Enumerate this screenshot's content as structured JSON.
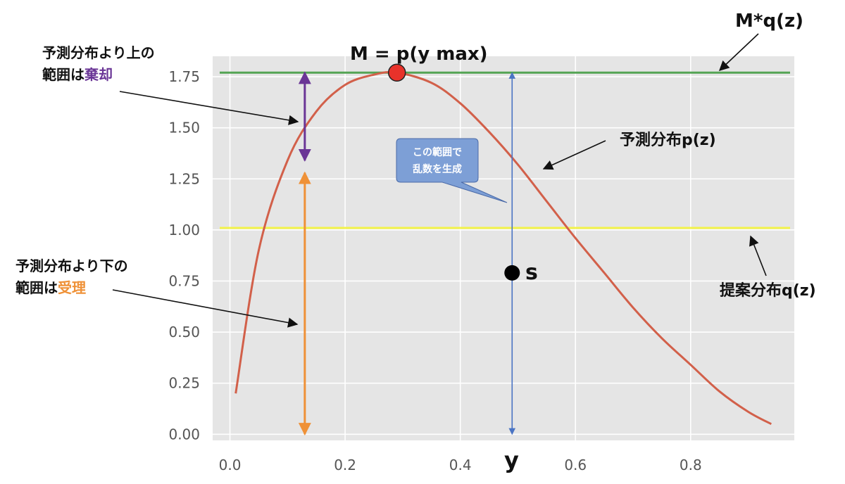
{
  "chart_data": {
    "type": "line",
    "x_ticks": [
      "0.0",
      "0.2",
      "0.4",
      "0.6",
      "0.8"
    ],
    "y_ticks": [
      "0.00",
      "0.25",
      "0.50",
      "0.75",
      "1.00",
      "1.25",
      "1.50",
      "1.75"
    ],
    "xlim": [
      -0.03,
      0.98
    ],
    "ylim": [
      -0.03,
      1.85
    ],
    "grid": true,
    "target_curve": {
      "label": "予測分布p(z)",
      "color": "#d2604a",
      "x": [
        0.01,
        0.05,
        0.1,
        0.15,
        0.2,
        0.25,
        0.29,
        0.35,
        0.4,
        0.45,
        0.5,
        0.55,
        0.6,
        0.65,
        0.7,
        0.75,
        0.8,
        0.85,
        0.9,
        0.94
      ],
      "y": [
        0.2,
        0.9,
        1.34,
        1.58,
        1.71,
        1.76,
        1.77,
        1.72,
        1.62,
        1.48,
        1.32,
        1.14,
        0.96,
        0.79,
        0.62,
        0.47,
        0.34,
        0.21,
        0.11,
        0.05
      ]
    },
    "envelope": {
      "label": "M*q(z)",
      "y": 1.77,
      "color": "#55a455"
    },
    "proposal": {
      "label": "提案分布q(z)",
      "y": 1.01,
      "color": "#f3f349"
    },
    "max_point": {
      "label": "M = p(y max)",
      "x": 0.29,
      "y": 1.77,
      "color": "#e8322a"
    },
    "sample_range": {
      "x": 0.49,
      "y_from": 0.0,
      "y_to": 1.77,
      "color": "#4a74c4",
      "x_label": "y"
    },
    "sample_point": {
      "x": 0.49,
      "y": 0.79,
      "label": "s"
    },
    "reject_range": {
      "x": 0.13,
      "y_from": 1.34,
      "y_to": 1.77,
      "color": "#6a3596"
    },
    "accept_range": {
      "x": 0.13,
      "y_from": 0.0,
      "y_to": 1.28,
      "color": "#ef9137"
    },
    "reject_note": {
      "line1": "予測分布より上の",
      "line2_prefix": "範囲は",
      "line2_emph": "棄却",
      "emph_color": "#6a3596"
    },
    "accept_note": {
      "line1": "予測分布より下の",
      "line2_prefix": "範囲は",
      "line2_emph": "受理",
      "emph_color": "#ef9137"
    },
    "callout": {
      "line1": "この範囲で",
      "line2": "乱数を生成",
      "color": "#7d9fd6"
    }
  }
}
